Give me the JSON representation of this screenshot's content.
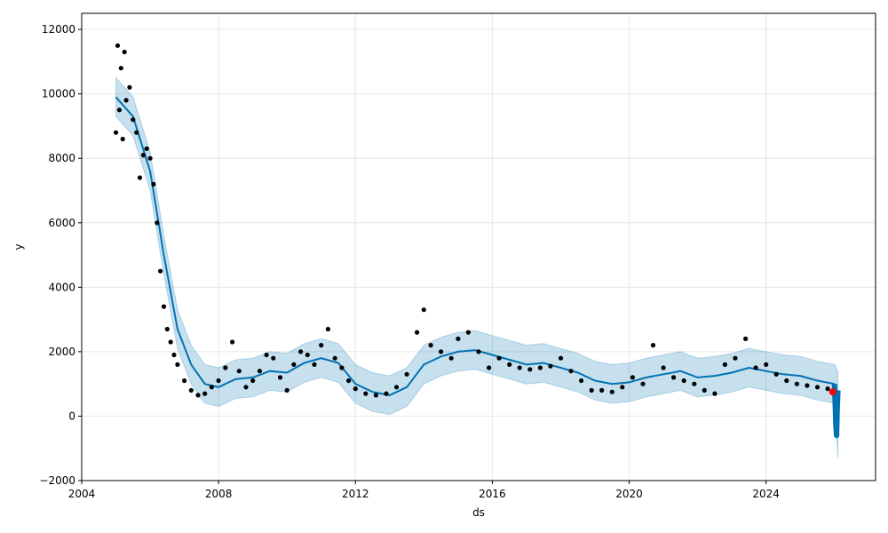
{
  "chart_data": {
    "type": "line",
    "title": "",
    "xlabel": "ds",
    "ylabel": "y",
    "xlim": [
      2004.0,
      2027.2
    ],
    "ylim": [
      -2000,
      12500
    ],
    "x_ticks": [
      2004,
      2008,
      2012,
      2016,
      2020,
      2024
    ],
    "y_ticks": [
      -2000,
      0,
      2000,
      4000,
      6000,
      8000,
      10000,
      12000
    ],
    "x_tick_labels": [
      "2004",
      "2008",
      "2012",
      "2016",
      "2020",
      "2024"
    ],
    "y_tick_labels": [
      "−2000",
      "0",
      "2000",
      "4000",
      "6000",
      "8000",
      "10000",
      "12000"
    ],
    "grid": true,
    "colors": {
      "observed": "#000000",
      "forecast": "#0072B2",
      "interval": "#0072B2",
      "highlight": "#ff0000"
    },
    "series": [
      {
        "kind": "scatter",
        "x": [
          2005.0,
          2005.05,
          2005.1,
          2005.15,
          2005.2,
          2005.25,
          2005.3,
          2005.4,
          2005.5,
          2005.6,
          2005.7,
          2005.8,
          2005.9,
          2006.0,
          2006.1,
          2006.2,
          2006.3,
          2006.4,
          2006.5,
          2006.6,
          2006.7,
          2006.8,
          2007.0,
          2007.2,
          2007.4,
          2007.6,
          2007.8,
          2008.0,
          2008.2,
          2008.4,
          2008.6,
          2008.8,
          2009.0,
          2009.2,
          2009.4,
          2009.6,
          2009.8,
          2010.0,
          2010.2,
          2010.4,
          2010.6,
          2010.8,
          2011.0,
          2011.2,
          2011.4,
          2011.6,
          2011.8,
          2012.0,
          2012.3,
          2012.6,
          2012.9,
          2013.2,
          2013.5,
          2013.8,
          2014.0,
          2014.2,
          2014.5,
          2014.8,
          2015.0,
          2015.3,
          2015.6,
          2015.9,
          2016.2,
          2016.5,
          2016.8,
          2017.1,
          2017.4,
          2017.7,
          2018.0,
          2018.3,
          2018.6,
          2018.9,
          2019.2,
          2019.5,
          2019.8,
          2020.1,
          2020.4,
          2020.7,
          2021.0,
          2021.3,
          2021.6,
          2021.9,
          2022.2,
          2022.5,
          2022.8,
          2023.1,
          2023.4,
          2023.7,
          2024.0,
          2024.3,
          2024.6,
          2024.9,
          2025.2,
          2025.5,
          2025.8
        ],
        "values": [
          8800,
          11500,
          9500,
          10800,
          8600,
          11300,
          9800,
          10200,
          9200,
          8800,
          7400,
          8100,
          8300,
          8000,
          7200,
          6000,
          4500,
          3400,
          2700,
          2300,
          1900,
          1600,
          1100,
          800,
          650,
          700,
          900,
          1100,
          1500,
          2300,
          1400,
          900,
          1100,
          1400,
          1900,
          1800,
          1200,
          800,
          1600,
          2000,
          1900,
          1600,
          2200,
          2700,
          1800,
          1500,
          1100,
          850,
          700,
          650,
          700,
          900,
          1300,
          2600,
          3300,
          2200,
          2000,
          1800,
          2400,
          2600,
          2000,
          1500,
          1800,
          1600,
          1500,
          1450,
          1500,
          1550,
          1800,
          1400,
          1100,
          800,
          800,
          750,
          900,
          1200,
          1000,
          2200,
          1500,
          1200,
          1100,
          1000,
          800,
          700,
          1600,
          1800,
          2400,
          1500,
          1600,
          1300,
          1100,
          1000,
          950,
          900,
          850
        ]
      },
      {
        "kind": "line",
        "x": [
          2005.0,
          2005.5,
          2006.0,
          2006.4,
          2006.8,
          2007.2,
          2007.6,
          2008.0,
          2008.5,
          2009.0,
          2009.5,
          2010.0,
          2010.5,
          2011.0,
          2011.5,
          2012.0,
          2012.5,
          2013.0,
          2013.5,
          2014.0,
          2014.5,
          2015.0,
          2015.5,
          2016.0,
          2016.5,
          2017.0,
          2017.5,
          2018.0,
          2018.5,
          2019.0,
          2019.5,
          2020.0,
          2020.5,
          2021.0,
          2021.5,
          2022.0,
          2022.5,
          2023.0,
          2023.5,
          2024.0,
          2024.5,
          2025.0,
          2025.5,
          2026.0
        ],
        "values": [
          9900,
          9300,
          7600,
          5000,
          2700,
          1600,
          1000,
          900,
          1150,
          1200,
          1400,
          1350,
          1650,
          1800,
          1650,
          1000,
          750,
          650,
          900,
          1600,
          1850,
          2000,
          2050,
          1900,
          1750,
          1600,
          1650,
          1500,
          1350,
          1100,
          1000,
          1050,
          1200,
          1300,
          1400,
          1200,
          1250,
          1350,
          1500,
          1400,
          1300,
          1250,
          1100,
          1000
        ]
      },
      {
        "kind": "interval",
        "x": [
          2005.0,
          2005.5,
          2006.0,
          2006.4,
          2006.8,
          2007.2,
          2007.6,
          2008.0,
          2008.5,
          2009.0,
          2009.5,
          2010.0,
          2010.5,
          2011.0,
          2011.5,
          2012.0,
          2012.5,
          2013.0,
          2013.5,
          2014.0,
          2014.5,
          2015.0,
          2015.5,
          2016.0,
          2016.5,
          2017.0,
          2017.5,
          2018.0,
          2018.5,
          2019.0,
          2019.5,
          2020.0,
          2020.5,
          2021.0,
          2021.5,
          2022.0,
          2022.5,
          2023.0,
          2023.5,
          2024.0,
          2024.5,
          2025.0,
          2025.5,
          2026.0,
          2026.1
        ],
        "lower": [
          9300,
          8700,
          7000,
          4400,
          2100,
          1000,
          400,
          300,
          550,
          600,
          800,
          750,
          1050,
          1200,
          1050,
          400,
          150,
          50,
          300,
          1000,
          1250,
          1400,
          1450,
          1300,
          1150,
          1000,
          1050,
          900,
          750,
          500,
          400,
          450,
          600,
          700,
          800,
          600,
          650,
          750,
          900,
          800,
          700,
          650,
          500,
          400,
          -1300
        ],
        "upper": [
          10500,
          9900,
          8200,
          5600,
          3300,
          2200,
          1600,
          1500,
          1750,
          1800,
          2000,
          1950,
          2250,
          2400,
          2250,
          1600,
          1350,
          1250,
          1500,
          2200,
          2450,
          2600,
          2650,
          2500,
          2350,
          2200,
          2250,
          2100,
          1950,
          1700,
          1600,
          1650,
          1800,
          1900,
          2000,
          1800,
          1850,
          1950,
          2100,
          2000,
          1900,
          1850,
          1700,
          1600,
          1400
        ]
      },
      {
        "kind": "forecast-spread",
        "x": [
          2026.0,
          2026.02,
          2026.04,
          2026.06,
          2026.08,
          2026.1
        ],
        "values": [
          1000,
          400,
          -300,
          -600,
          200,
          800
        ]
      },
      {
        "kind": "highlight-point",
        "x": [
          2025.95
        ],
        "values": [
          750
        ]
      }
    ]
  }
}
